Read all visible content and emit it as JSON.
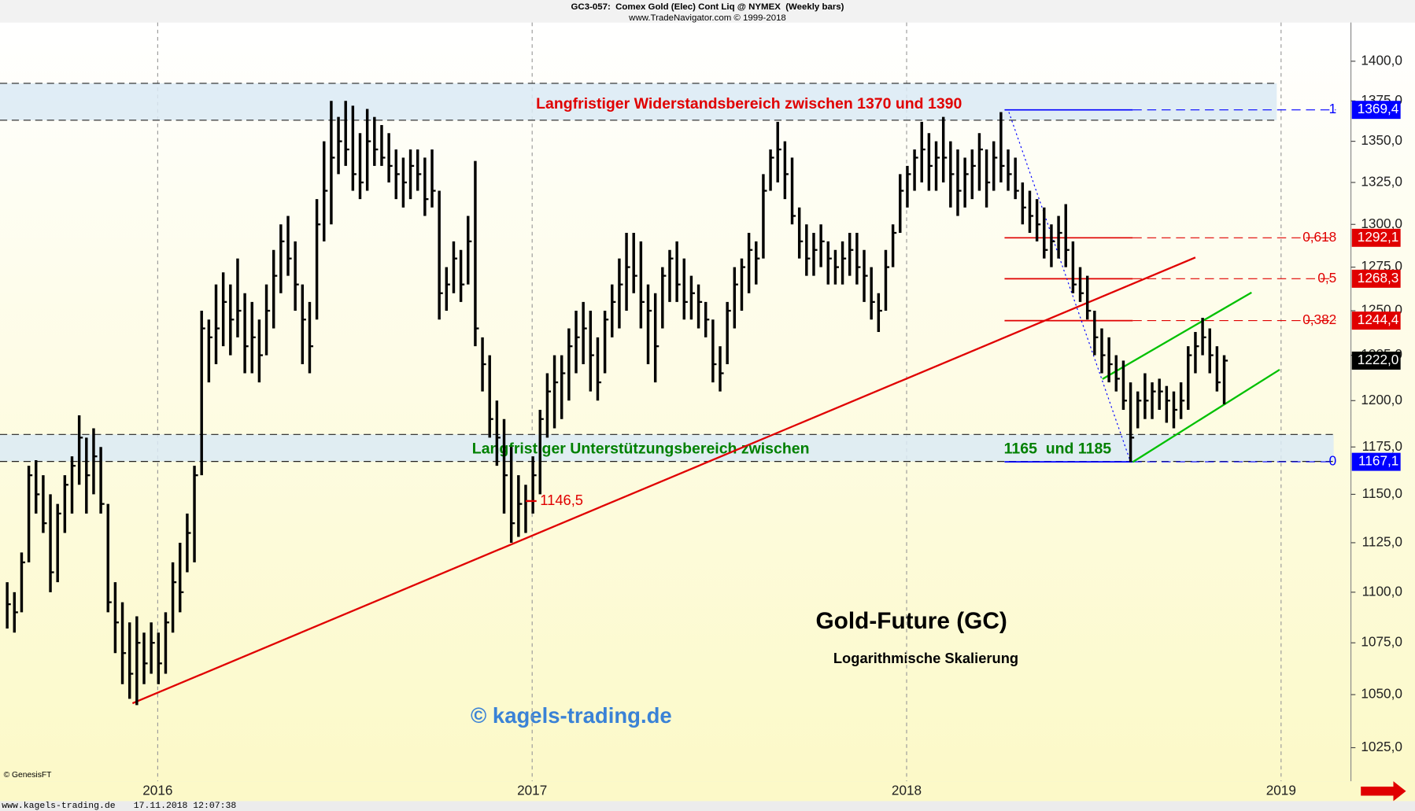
{
  "chart_data": {
    "type": "ohlc",
    "title": "Gold-Future (GC)",
    "subtitle": "Logarithmische Skalierung",
    "header": "GC3-057:  Comex Gold (Elec) Cont Liq @ NYMEX  (Weekly bars)",
    "header_sub": "www.TradeNavigator.com © 1999-2018",
    "watermark": "© kagels-trading.de",
    "source": "© GenesisFT",
    "footer_site": "www.kagels-trading.de",
    "footer_time": "17.11.2018 12:07:38",
    "log_scale": true,
    "bar_color": "#000000",
    "xlim": [
      -1,
      186.6
    ],
    "xticks": [
      {
        "value": 20.9,
        "label": "2016"
      },
      {
        "value": 72.9,
        "label": "2017"
      },
      {
        "value": 124.9,
        "label": "2018"
      },
      {
        "value": 176.9,
        "label": "2019"
      }
    ],
    "ylim": [
      1009.5,
      1424.8
    ],
    "yticks": [
      {
        "value": 1025,
        "label": "1025,0"
      },
      {
        "value": 1050,
        "label": "1050,0"
      },
      {
        "value": 1075,
        "label": "1075,0"
      },
      {
        "value": 1100,
        "label": "1100,0"
      },
      {
        "value": 1125,
        "label": "1125,0"
      },
      {
        "value": 1150,
        "label": "1150,0"
      },
      {
        "value": 1175,
        "label": "1175,0"
      },
      {
        "value": 1200,
        "label": "1200,0"
      },
      {
        "value": 1225,
        "label": "1225,0"
      },
      {
        "value": 1250,
        "label": "1250,0"
      },
      {
        "value": 1275,
        "label": "1275,0"
      },
      {
        "value": 1300,
        "label": "1300,0"
      },
      {
        "value": 1325,
        "label": "1325,0"
      },
      {
        "value": 1350,
        "label": "1350,0"
      },
      {
        "value": 1375,
        "label": "1375,0"
      },
      {
        "value": 1400,
        "label": "1400,0"
      }
    ],
    "bars": [
      [
        1105,
        1082,
        1094
      ],
      [
        1100,
        1080,
        1090
      ],
      [
        1120,
        1090,
        1115
      ],
      [
        1165,
        1115,
        1160
      ],
      [
        1168,
        1140,
        1150
      ],
      [
        1160,
        1130,
        1135
      ],
      [
        1150,
        1100,
        1110
      ],
      [
        1145,
        1105,
        1140
      ],
      [
        1160,
        1130,
        1155
      ],
      [
        1170,
        1140,
        1165
      ],
      [
        1192,
        1155,
        1180
      ],
      [
        1180,
        1140,
        1160
      ],
      [
        1185,
        1150,
        1170
      ],
      [
        1175,
        1140,
        1145
      ],
      [
        1145,
        1090,
        1095
      ],
      [
        1105,
        1070,
        1085
      ],
      [
        1095,
        1055,
        1070
      ],
      [
        1085,
        1048,
        1060
      ],
      [
        1088,
        1045,
        1075
      ],
      [
        1080,
        1055,
        1065
      ],
      [
        1085,
        1060,
        1075
      ],
      [
        1080,
        1055,
        1065
      ],
      [
        1090,
        1060,
        1085
      ],
      [
        1115,
        1080,
        1105
      ],
      [
        1125,
        1090,
        1100
      ],
      [
        1140,
        1110,
        1130
      ],
      [
        1165,
        1115,
        1160
      ],
      [
        1250,
        1160,
        1240
      ],
      [
        1245,
        1210,
        1235
      ],
      [
        1265,
        1220,
        1240
      ],
      [
        1272,
        1230,
        1255
      ],
      [
        1265,
        1225,
        1245
      ],
      [
        1280,
        1235,
        1250
      ],
      [
        1260,
        1215,
        1230
      ],
      [
        1255,
        1215,
        1235
      ],
      [
        1245,
        1210,
        1225
      ],
      [
        1265,
        1225,
        1250
      ],
      [
        1285,
        1240,
        1270
      ],
      [
        1300,
        1260,
        1290
      ],
      [
        1305,
        1270,
        1280
      ],
      [
        1290,
        1250,
        1265
      ],
      [
        1265,
        1220,
        1245
      ],
      [
        1255,
        1215,
        1230
      ],
      [
        1315,
        1245,
        1300
      ],
      [
        1350,
        1290,
        1320
      ],
      [
        1375,
        1300,
        1340
      ],
      [
        1365,
        1330,
        1350
      ],
      [
        1375,
        1335,
        1345
      ],
      [
        1372,
        1320,
        1330
      ],
      [
        1355,
        1315,
        1325
      ],
      [
        1370,
        1320,
        1350
      ],
      [
        1365,
        1335,
        1345
      ],
      [
        1360,
        1335,
        1340
      ],
      [
        1355,
        1325,
        1335
      ],
      [
        1345,
        1315,
        1330
      ],
      [
        1340,
        1310,
        1325
      ],
      [
        1345,
        1315,
        1335
      ],
      [
        1345,
        1320,
        1330
      ],
      [
        1340,
        1305,
        1315
      ],
      [
        1345,
        1310,
        1320
      ],
      [
        1320,
        1245,
        1260
      ],
      [
        1275,
        1250,
        1265
      ],
      [
        1290,
        1260,
        1280
      ],
      [
        1285,
        1255,
        1265
      ],
      [
        1305,
        1265,
        1290
      ],
      [
        1338,
        1230,
        1240
      ],
      [
        1235,
        1205,
        1220
      ],
      [
        1225,
        1180,
        1190
      ],
      [
        1200,
        1165,
        1180
      ],
      [
        1190,
        1140,
        1160
      ],
      [
        1175,
        1125,
        1135
      ],
      [
        1160,
        1128,
        1145
      ],
      [
        1155,
        1130,
        1146.5
      ],
      [
        1170,
        1140,
        1160
      ],
      [
        1195,
        1150,
        1190
      ],
      [
        1215,
        1180,
        1205
      ],
      [
        1225,
        1185,
        1210
      ],
      [
        1225,
        1190,
        1215
      ],
      [
        1240,
        1200,
        1230
      ],
      [
        1250,
        1215,
        1235
      ],
      [
        1255,
        1220,
        1240
      ],
      [
        1250,
        1205,
        1225
      ],
      [
        1235,
        1200,
        1210
      ],
      [
        1250,
        1215,
        1245
      ],
      [
        1265,
        1235,
        1255
      ],
      [
        1280,
        1240,
        1265
      ],
      [
        1295,
        1250,
        1275
      ],
      [
        1295,
        1260,
        1270
      ],
      [
        1290,
        1240,
        1255
      ],
      [
        1265,
        1220,
        1250
      ],
      [
        1260,
        1210,
        1230
      ],
      [
        1275,
        1240,
        1270
      ],
      [
        1285,
        1255,
        1280
      ],
      [
        1290,
        1255,
        1265
      ],
      [
        1280,
        1245,
        1255
      ],
      [
        1270,
        1245,
        1260
      ],
      [
        1265,
        1240,
        1255
      ],
      [
        1255,
        1235,
        1245
      ],
      [
        1245,
        1210,
        1220
      ],
      [
        1230,
        1205,
        1215
      ],
      [
        1255,
        1220,
        1250
      ],
      [
        1275,
        1240,
        1265
      ],
      [
        1280,
        1250,
        1275
      ],
      [
        1295,
        1260,
        1285
      ],
      [
        1290,
        1265,
        1280
      ],
      [
        1330,
        1280,
        1320
      ],
      [
        1345,
        1320,
        1340
      ],
      [
        1362,
        1325,
        1345
      ],
      [
        1350,
        1315,
        1330
      ],
      [
        1340,
        1300,
        1305
      ],
      [
        1310,
        1280,
        1290
      ],
      [
        1300,
        1270,
        1280
      ],
      [
        1295,
        1270,
        1285
      ],
      [
        1300,
        1275,
        1290
      ],
      [
        1290,
        1265,
        1280
      ],
      [
        1285,
        1265,
        1275
      ],
      [
        1290,
        1265,
        1280
      ],
      [
        1295,
        1270,
        1285
      ],
      [
        1295,
        1265,
        1275
      ],
      [
        1285,
        1255,
        1270
      ],
      [
        1275,
        1245,
        1255
      ],
      [
        1260,
        1238,
        1250
      ],
      [
        1285,
        1250,
        1275
      ],
      [
        1300,
        1275,
        1295
      ],
      [
        1330,
        1295,
        1320
      ],
      [
        1335,
        1310,
        1330
      ],
      [
        1345,
        1320,
        1340
      ],
      [
        1362,
        1325,
        1345
      ],
      [
        1355,
        1320,
        1335
      ],
      [
        1350,
        1320,
        1340
      ],
      [
        1365,
        1325,
        1340
      ],
      [
        1350,
        1310,
        1330
      ],
      [
        1345,
        1305,
        1320
      ],
      [
        1340,
        1310,
        1330
      ],
      [
        1345,
        1315,
        1335
      ],
      [
        1355,
        1320,
        1345
      ],
      [
        1345,
        1310,
        1325
      ],
      [
        1350,
        1320,
        1340
      ],
      [
        1368,
        1325,
        1335
      ],
      [
        1345,
        1320,
        1330
      ],
      [
        1340,
        1315,
        1320
      ],
      [
        1325,
        1300,
        1310
      ],
      [
        1320,
        1295,
        1305
      ],
      [
        1315,
        1290,
        1300
      ],
      [
        1310,
        1280,
        1285
      ],
      [
        1300,
        1275,
        1290
      ],
      [
        1305,
        1280,
        1295
      ],
      [
        1312,
        1275,
        1285
      ],
      [
        1290,
        1260,
        1265
      ],
      [
        1275,
        1255,
        1260
      ],
      [
        1270,
        1245,
        1250
      ],
      [
        1250,
        1225,
        1235
      ],
      [
        1240,
        1215,
        1225
      ],
      [
        1235,
        1210,
        1220
      ],
      [
        1225,
        1205,
        1212
      ],
      [
        1222,
        1195,
        1200
      ],
      [
        1210,
        1167,
        1180
      ],
      [
        1205,
        1185,
        1200
      ],
      [
        1215,
        1190,
        1200
      ],
      [
        1210,
        1190,
        1205
      ],
      [
        1212,
        1195,
        1205
      ],
      [
        1208,
        1188,
        1200
      ],
      [
        1205,
        1185,
        1195
      ],
      [
        1210,
        1190,
        1200
      ],
      [
        1230,
        1195,
        1225
      ],
      [
        1238,
        1215,
        1230
      ],
      [
        1246,
        1225,
        1235
      ],
      [
        1240,
        1215,
        1225
      ],
      [
        1230,
        1205,
        1210
      ],
      [
        1225,
        1198,
        1222
      ]
    ],
    "zones": [
      {
        "low": 1363,
        "high": 1386,
        "to": 176.3,
        "label": "Langfristiger Widerstandsbereich zwischen 1370 und 1390",
        "color": "#e00000"
      },
      {
        "low": 1167.3,
        "high": 1181.7,
        "to": 184.2,
        "label": "Langfristiger Unterstützungsbereich zwischen",
        "label2": "1165  und 1185",
        "color": "#008000"
      }
    ],
    "trendlines": [
      {
        "x": [
          17.4,
          165
        ],
        "y": [
          1045.9,
          1280.6
        ],
        "color": "#e00000",
        "style": "solid"
      },
      {
        "x": [
          156.3,
          176.7
        ],
        "y": [
          1167,
          1217
        ],
        "color": "#00c000",
        "style": "solid"
      },
      {
        "x": [
          152.1,
          172.8
        ],
        "y": [
          1211.8,
          1260.4
        ],
        "color": "#00c000",
        "style": "solid"
      },
      {
        "x": [
          139.1,
          156
        ],
        "y": [
          1368,
          1167
        ],
        "color": "#0000ff",
        "style": "dotted"
      }
    ],
    "fib": {
      "from": 138.5,
      "solid_to": 156.3,
      "to": 184.5,
      "ratios": [
        "1",
        "0,618",
        "0,5",
        "0,382",
        "0"
      ],
      "values": [
        1369.4,
        1292.1,
        1268.3,
        1244.4,
        1167.1
      ],
      "value_labels": [
        "1369,4",
        "1292,1",
        "1268,3",
        "1244,4",
        "1167,1"
      ],
      "colors": [
        "#0000ff",
        "#e00000",
        "#e00000",
        "#e00000",
        "#0000ff"
      ]
    },
    "last_price": {
      "value": 1222.0,
      "label": "1222,0"
    },
    "low_note": {
      "x": 72,
      "value": 1146.5,
      "label": "1146,5"
    }
  }
}
